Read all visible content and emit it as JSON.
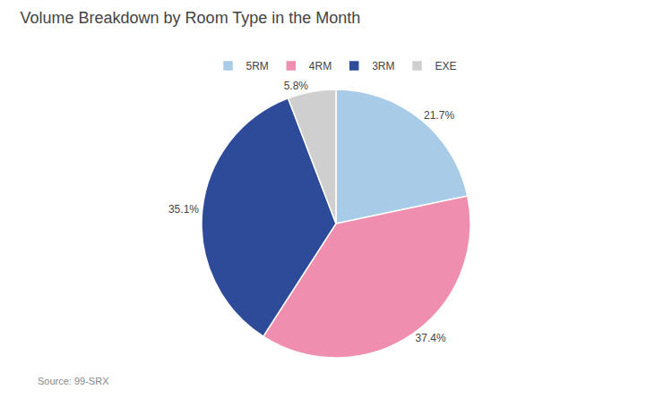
{
  "chart_data": {
    "type": "pie",
    "title": "Volume Breakdown by Room Type in the Month",
    "categories": [
      "5RM",
      "4RM",
      "3RM",
      "EXE"
    ],
    "values": [
      21.7,
      37.4,
      35.1,
      5.8
    ],
    "value_labels": [
      "21.7%",
      "37.4%",
      "35.1%",
      "5.8%"
    ],
    "colors": [
      "#A8CCE8",
      "#F08EB0",
      "#2E4B9A",
      "#D0CFCF"
    ],
    "data_labels": true,
    "legend": "top",
    "annotations": [
      "Source: 99-SRX"
    ]
  }
}
